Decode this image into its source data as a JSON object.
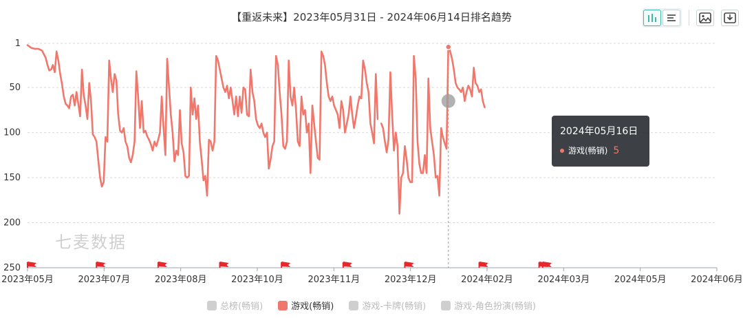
{
  "header": {
    "title": "【重返未来】2023年05月31日 - 2024年06月14日排名趋势"
  },
  "toolbar": {
    "icons": [
      "bar-chart-icon",
      "list-icon",
      "image-icon",
      "download-icon"
    ]
  },
  "watermark": "七麦数据",
  "tooltip": {
    "date": "2024年05月16日",
    "series": "游戏(畅销)",
    "value": "5"
  },
  "legend": [
    {
      "label": "总榜(畅销)",
      "active": false
    },
    {
      "label": "游戏(畅销)",
      "active": true
    },
    {
      "label": "游戏-卡牌(畅销)",
      "active": false
    },
    {
      "label": "游戏-角色扮演(畅销)",
      "active": false
    }
  ],
  "colors": {
    "line": "#f0776c",
    "grid": "#d9d9d9",
    "axis": "#9aa3ad",
    "flag": "#e8262b"
  },
  "chart_data": {
    "type": "line",
    "title": "【重返未来】2023年05月31日 - 2024年06月14日排名趋势",
    "y_inverted": true,
    "ylim": [
      1,
      250
    ],
    "yticks": [
      1,
      50,
      100,
      150,
      200,
      250
    ],
    "x_tick_labels": [
      "2023年05月",
      "2023年07月",
      "2023年08月",
      "2023年10月",
      "2023年11月",
      "2023年12月",
      "2024年02月",
      "2024年03月",
      "2024年05月",
      "2024年06月"
    ],
    "grid": true,
    "legend_position": "bottom",
    "x_range": [
      0,
      380
    ],
    "event_flags_x": [
      0,
      38,
      72,
      106,
      140,
      174,
      208,
      249,
      282,
      284
    ],
    "series": [
      {
        "name": "游戏(畅销)",
        "values": [
          [
            0,
            3
          ],
          [
            2,
            6
          ],
          [
            4,
            7
          ],
          [
            6,
            7
          ],
          [
            8,
            9
          ],
          [
            10,
            17
          ],
          [
            11,
            25
          ],
          [
            12,
            31
          ],
          [
            13,
            30
          ],
          [
            14,
            25
          ],
          [
            15,
            33
          ],
          [
            16,
            10
          ],
          [
            17,
            20
          ],
          [
            18,
            35
          ],
          [
            19,
            46
          ],
          [
            20,
            60
          ],
          [
            21,
            68
          ],
          [
            22,
            70
          ],
          [
            23,
            73
          ],
          [
            24,
            60
          ],
          [
            25,
            58
          ],
          [
            26,
            70
          ],
          [
            27,
            55
          ],
          [
            28,
            68
          ],
          [
            29,
            82
          ],
          [
            30,
            30
          ],
          [
            31,
            58
          ],
          [
            32,
            70
          ],
          [
            33,
            85
          ],
          [
            34,
            45
          ],
          [
            35,
            65
          ],
          [
            36,
            102
          ],
          [
            37,
            105
          ],
          [
            38,
            110
          ],
          [
            39,
            130
          ],
          [
            40,
            150
          ],
          [
            41,
            160
          ],
          [
            42,
            155
          ],
          [
            43,
            105
          ],
          [
            44,
            110
          ],
          [
            45,
            20
          ],
          [
            46,
            40
          ],
          [
            47,
            55
          ],
          [
            48,
            35
          ],
          [
            49,
            42
          ],
          [
            50,
            80
          ],
          [
            51,
            98
          ],
          [
            52,
            100
          ],
          [
            53,
            95
          ],
          [
            54,
            110
          ],
          [
            55,
            115
          ],
          [
            56,
            128
          ],
          [
            57,
            133
          ],
          [
            58,
            125
          ],
          [
            59,
            110
          ],
          [
            60,
            32
          ],
          [
            61,
            60
          ],
          [
            62,
            95
          ],
          [
            63,
            65
          ],
          [
            64,
            100
          ],
          [
            65,
            98
          ],
          [
            66,
            104
          ],
          [
            67,
            108
          ],
          [
            68,
            113
          ],
          [
            69,
            120
          ],
          [
            70,
            110
          ],
          [
            71,
            115
          ],
          [
            72,
            108
          ],
          [
            73,
            100
          ],
          [
            74,
            60
          ],
          [
            75,
            95
          ],
          [
            76,
            125
          ],
          [
            77,
            18
          ],
          [
            78,
            50
          ],
          [
            79,
            80
          ],
          [
            80,
            100
          ],
          [
            81,
            132
          ],
          [
            82,
            120
          ],
          [
            83,
            125
          ],
          [
            84,
            75
          ],
          [
            85,
            112
          ],
          [
            86,
            122
          ],
          [
            87,
            148
          ],
          [
            88,
            150
          ],
          [
            89,
            148
          ],
          [
            90,
            50
          ],
          [
            91,
            80
          ],
          [
            92,
            62
          ],
          [
            93,
            85
          ],
          [
            94,
            70
          ],
          [
            95,
            110
          ],
          [
            96,
            130
          ],
          [
            97,
            153
          ],
          [
            98,
            148
          ],
          [
            99,
            170
          ],
          [
            100,
            108
          ],
          [
            101,
            110
          ],
          [
            102,
            120
          ],
          [
            103,
            110
          ],
          [
            104,
            15
          ],
          [
            105,
            20
          ],
          [
            106,
            30
          ],
          [
            107,
            40
          ],
          [
            108,
            50
          ],
          [
            109,
            55
          ],
          [
            110,
            48
          ],
          [
            111,
            62
          ],
          [
            112,
            50
          ],
          [
            113,
            65
          ],
          [
            114,
            80
          ],
          [
            115,
            60
          ],
          [
            116,
            82
          ],
          [
            117,
            60
          ],
          [
            118,
            78
          ],
          [
            119,
            50
          ],
          [
            120,
            52
          ],
          [
            121,
            80
          ],
          [
            122,
            82
          ],
          [
            123,
            30
          ],
          [
            124,
            55
          ],
          [
            125,
            65
          ],
          [
            126,
            85
          ],
          [
            127,
            92
          ],
          [
            128,
            95
          ],
          [
            129,
            90
          ],
          [
            130,
            100
          ],
          [
            131,
            105
          ],
          [
            132,
            100
          ],
          [
            133,
            140
          ],
          [
            134,
            130
          ],
          [
            135,
            115
          ],
          [
            136,
            110
          ],
          [
            137,
            15
          ],
          [
            138,
            25
          ],
          [
            139,
            55
          ],
          [
            140,
            80
          ],
          [
            141,
            115
          ],
          [
            142,
            118
          ],
          [
            143,
            110
          ],
          [
            144,
            20
          ],
          [
            145,
            60
          ],
          [
            146,
            70
          ],
          [
            147,
            50
          ],
          [
            148,
            75
          ],
          [
            149,
            110
          ],
          [
            150,
            115
          ],
          [
            151,
            60
          ],
          [
            152,
            80
          ],
          [
            153,
            75
          ],
          [
            154,
            100
          ],
          [
            155,
            90
          ],
          [
            156,
            145
          ],
          [
            157,
            70
          ],
          [
            158,
            90
          ],
          [
            159,
            110
          ],
          [
            160,
            128
          ],
          [
            161,
            130
          ],
          [
            162,
            10
          ],
          [
            163,
            15
          ],
          [
            164,
            25
          ],
          [
            165,
            45
          ],
          [
            166,
            60
          ],
          [
            167,
            65
          ],
          [
            168,
            60
          ],
          [
            169,
            70
          ],
          [
            170,
            75
          ],
          [
            171,
            80
          ],
          [
            172,
            95
          ],
          [
            173,
            65
          ],
          [
            174,
            75
          ],
          [
            175,
            100
          ],
          [
            176,
            90
          ],
          [
            177,
            80
          ],
          [
            178,
            60
          ],
          [
            179,
            80
          ],
          [
            180,
            95
          ],
          [
            181,
            83
          ],
          [
            182,
            70
          ],
          [
            183,
            60
          ],
          [
            184,
            62
          ],
          [
            185,
            20
          ],
          [
            186,
            30
          ],
          [
            187,
            45
          ],
          [
            188,
            55
          ],
          [
            189,
            90
          ],
          [
            190,
            100
          ],
          [
            191,
            112
          ],
          [
            192,
            35
          ],
          [
            193,
            85
          ],
          [
            194,
            null
          ],
          [
            195,
            90
          ],
          [
            196,
            95
          ],
          [
            197,
            110
          ],
          [
            198,
            122
          ],
          [
            199,
            108
          ],
          [
            200,
            33
          ],
          [
            201,
            80
          ],
          [
            202,
            120
          ],
          [
            203,
            100
          ],
          [
            204,
            115
          ],
          [
            205,
            190
          ],
          [
            206,
            150
          ],
          [
            207,
            145
          ],
          [
            208,
            115
          ],
          [
            209,
            130
          ],
          [
            210,
            150
          ],
          [
            211,
            155
          ],
          [
            212,
            155
          ],
          [
            213,
            15
          ],
          [
            214,
            40
          ],
          [
            215,
            110
          ],
          [
            216,
            135
          ],
          [
            217,
            145
          ],
          [
            218,
            145
          ],
          [
            219,
            125
          ],
          [
            220,
            145
          ],
          [
            221,
            40
          ],
          [
            222,
            95
          ],
          [
            223,
            110
          ],
          [
            224,
            125
          ],
          [
            225,
            150
          ],
          [
            226,
            148
          ],
          [
            227,
            170
          ],
          [
            228,
            95
          ],
          [
            229,
            105
          ],
          [
            230,
            112
          ],
          [
            231,
            118
          ],
          [
            232,
            3
          ],
          [
            233,
            10
          ],
          [
            234,
            18
          ],
          [
            235,
            30
          ],
          [
            236,
            45
          ],
          [
            237,
            50
          ],
          [
            238,
            52
          ],
          [
            239,
            55
          ],
          [
            240,
            50
          ],
          [
            241,
            65
          ],
          [
            242,
            55
          ],
          [
            243,
            48
          ],
          [
            244,
            52
          ],
          [
            245,
            60
          ],
          [
            246,
            28
          ],
          [
            247,
            45
          ],
          [
            248,
            48
          ],
          [
            249,
            55
          ],
          [
            250,
            52
          ],
          [
            251,
            65
          ],
          [
            252,
            72
          ]
        ]
      }
    ]
  }
}
